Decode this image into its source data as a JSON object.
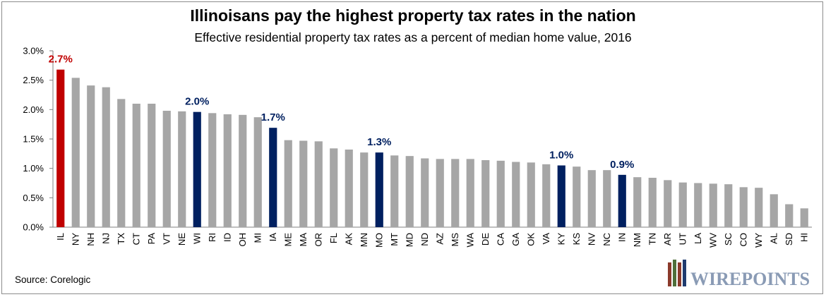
{
  "title": "Illinoisans pay the highest property tax rates in the nation",
  "subtitle": "Effective residential property tax rates as a percent of median home value, 2016",
  "source": "Source: Corelogic",
  "logo": {
    "text": "WIREPOINTS",
    "colors": [
      "#8b3a2b",
      "#4f6f3a",
      "#1f3b6e"
    ]
  },
  "colors": {
    "default_bar": "#a6a6a6",
    "illinois": "#c00000",
    "highlight": "#002060",
    "axis": "#808080"
  },
  "chart_data": {
    "type": "bar",
    "title": "Illinoisans pay the highest property tax rates in the nation",
    "subtitle": "Effective residential property tax rates as a percent of median home value, 2016",
    "ylim": [
      0,
      3.0
    ],
    "y_ticks": [
      "0.0%",
      "0.5%",
      "1.0%",
      "1.5%",
      "2.0%",
      "2.5%",
      "3.0%"
    ],
    "categories": [
      "IL",
      "NY",
      "NH",
      "NJ",
      "TX",
      "CT",
      "PA",
      "VT",
      "NE",
      "WI",
      "RI",
      "ID",
      "OH",
      "MI",
      "IA",
      "ME",
      "MA",
      "OR",
      "FL",
      "AK",
      "MN",
      "MO",
      "MT",
      "MD",
      "ND",
      "AZ",
      "MS",
      "WA",
      "DE",
      "CA",
      "GA",
      "OK",
      "VA",
      "KY",
      "KS",
      "NV",
      "NC",
      "IN",
      "NM",
      "TN",
      "AR",
      "UT",
      "LA",
      "WV",
      "SC",
      "CO",
      "WY",
      "AL",
      "SD",
      "HI"
    ],
    "values": [
      2.68,
      2.54,
      2.41,
      2.38,
      2.18,
      2.1,
      2.1,
      1.98,
      1.97,
      1.96,
      1.94,
      1.92,
      1.91,
      1.87,
      1.69,
      1.48,
      1.47,
      1.46,
      1.34,
      1.32,
      1.27,
      1.27,
      1.22,
      1.21,
      1.17,
      1.16,
      1.16,
      1.16,
      1.14,
      1.13,
      1.11,
      1.1,
      1.07,
      1.05,
      1.03,
      0.97,
      0.97,
      0.89,
      0.85,
      0.84,
      0.8,
      0.76,
      0.75,
      0.74,
      0.73,
      0.68,
      0.67,
      0.56,
      0.39,
      0.32
    ],
    "highlights": {
      "IL": "illinois",
      "WI": "highlight",
      "IA": "highlight",
      "MO": "highlight",
      "KY": "highlight",
      "IN": "highlight"
    },
    "data_labels": [
      {
        "category": "IL",
        "text": "2.7%"
      },
      {
        "category": "WI",
        "text": "2.0%"
      },
      {
        "category": "IA",
        "text": "1.7%"
      },
      {
        "category": "MO",
        "text": "1.3%"
      },
      {
        "category": "KY",
        "text": "1.0%"
      },
      {
        "category": "IN",
        "text": "0.9%"
      }
    ],
    "grid": false,
    "legend": "none"
  }
}
